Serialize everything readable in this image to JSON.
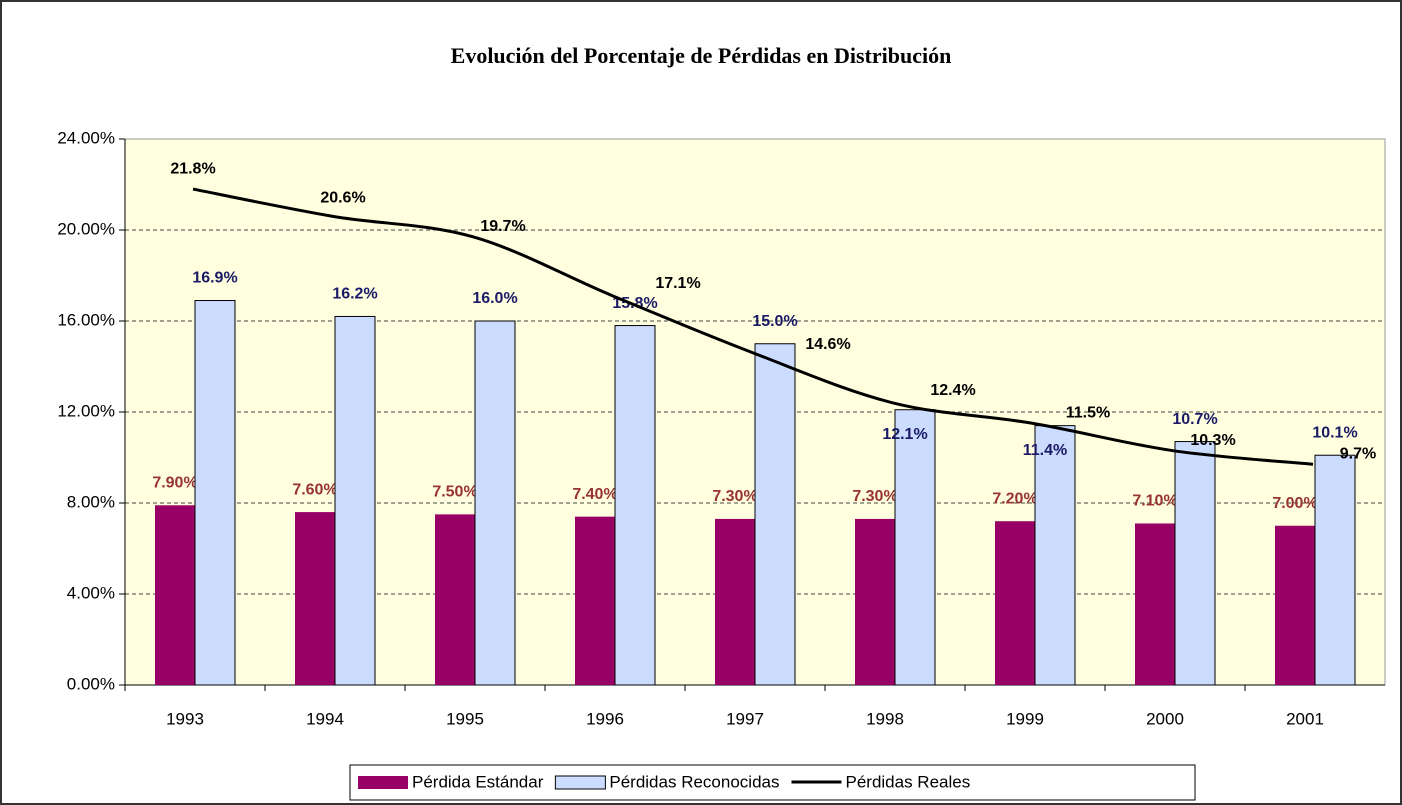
{
  "chart_data": {
    "type": "bar-line",
    "title": "Evolución del Porcentaje de Pérdidas en Distribución",
    "categories": [
      "1993",
      "1994",
      "1995",
      "1996",
      "1997",
      "1998",
      "1999",
      "2000",
      "2001"
    ],
    "series": [
      {
        "name": "Pérdida Estándar",
        "type": "bar",
        "color": "#990066",
        "values": [
          7.9,
          7.6,
          7.5,
          7.4,
          7.3,
          7.3,
          7.2,
          7.1,
          7.0
        ],
        "value_labels": [
          "7.90%",
          "7.60%",
          "7.50%",
          "7.40%",
          "7.30%",
          "7.30%",
          "7.20%",
          "7.10%",
          "7.00%"
        ],
        "label_color": "#993333"
      },
      {
        "name": "Pérdidas Reconocidas",
        "type": "bar",
        "color": "#ccdcff",
        "values": [
          16.9,
          16.2,
          16.0,
          15.8,
          15.0,
          12.1,
          11.4,
          10.7,
          10.1
        ],
        "value_labels": [
          "16.9%",
          "16.2%",
          "16.0%",
          "15.8%",
          "15.0%",
          "12.1%",
          "11.4%",
          "10.7%",
          "10.1%"
        ],
        "label_color": "#1a1a66"
      },
      {
        "name": "Pérdidas Reales",
        "type": "line",
        "color": "#000000",
        "values": [
          21.8,
          20.6,
          19.7,
          17.1,
          14.6,
          12.4,
          11.5,
          10.3,
          9.7
        ],
        "value_labels": [
          "21.8%",
          "20.6%",
          "19.7%",
          "17.1%",
          "14.6%",
          "12.4%",
          "11.5%",
          "10.3%",
          "9.7%"
        ],
        "label_color": "#000000"
      }
    ],
    "ylim": [
      0,
      24
    ],
    "yticks": [
      {
        "value": 0,
        "label": "0.00%"
      },
      {
        "value": 4,
        "label": "4.00%"
      },
      {
        "value": 8,
        "label": "8.00%"
      },
      {
        "value": 12,
        "label": "12.00%"
      },
      {
        "value": 16,
        "label": "16.00%"
      },
      {
        "value": 20,
        "label": "20.00%"
      },
      {
        "value": 24,
        "label": "24.00%"
      }
    ],
    "grid": true,
    "legend": "bottom",
    "plot_background": "#ffffe0"
  }
}
